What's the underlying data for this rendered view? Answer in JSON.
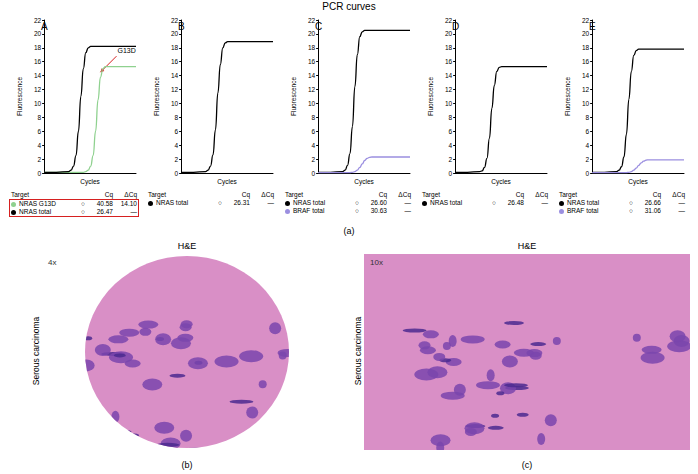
{
  "title": "PCR curves",
  "figure_label": "(a)",
  "table_header": [
    "Target",
    "Cq",
    "ΔCq"
  ],
  "chart_data": [
    {
      "type": "line",
      "panel": "A",
      "x_label": "Cycles",
      "y_label": "Fluorescence",
      "xlim": [
        0,
        75
      ],
      "ylim": [
        0,
        22
      ],
      "yticks": [
        0,
        2,
        4,
        6,
        8,
        10,
        12,
        14,
        16,
        18,
        20,
        22
      ],
      "grid": false,
      "tick_labels": "y",
      "x": [
        0,
        10,
        20,
        22,
        24,
        26,
        28,
        30,
        32,
        34,
        36,
        38,
        40,
        42,
        44,
        46,
        48,
        50,
        60,
        70,
        75
      ],
      "series": [
        {
          "name": "NRAS G13D",
          "color": "#8fd18f",
          "line_style": "solid",
          "symbol": "○",
          "cq": 40.58,
          "delta_cq": 14.1,
          "values": [
            0.1,
            0.1,
            0.1,
            0.1,
            0.1,
            0.1,
            0.1,
            0.1,
            0.1,
            0.2,
            0.4,
            1,
            2.5,
            6,
            10.5,
            13.8,
            15,
            15.3,
            15.3,
            15.3,
            15.3
          ]
        },
        {
          "name": "NRAS total",
          "color": "#000000",
          "line_style": "solid",
          "symbol": "○",
          "cq": 26.47,
          "delta_cq": "—",
          "values": [
            0.1,
            0.1,
            0.2,
            0.4,
            1,
            2.5,
            6,
            11,
            15,
            17.3,
            18,
            18.2,
            18.2,
            18.2,
            18.2,
            18.2,
            18.2,
            18.2,
            18.2,
            18.2,
            18.2
          ]
        }
      ],
      "annotations": [
        {
          "text": "G13D",
          "x": 46,
          "y": 14.5
        }
      ]
    },
    {
      "type": "line",
      "panel": "B",
      "x_label": "Cycles",
      "y_label": "Fluorescence",
      "xlim": [
        0,
        75
      ],
      "ylim": [
        0,
        22
      ],
      "yticks": [
        0,
        2,
        4,
        6,
        8,
        10,
        12,
        14,
        16,
        18,
        20,
        22
      ],
      "grid": false,
      "tick_labels": "y",
      "x": [
        0,
        10,
        20,
        22,
        24,
        26,
        28,
        30,
        32,
        34,
        36,
        38,
        40,
        42,
        44,
        46,
        48,
        50,
        60,
        70,
        75
      ],
      "series": [
        {
          "name": "NRAS total",
          "color": "#000000",
          "line_style": "solid",
          "symbol": "○",
          "cq": 26.31,
          "delta_cq": "—",
          "values": [
            0.1,
            0.1,
            0.2,
            0.4,
            1,
            2.6,
            6.2,
            11.5,
            15.6,
            18,
            18.7,
            18.9,
            18.9,
            18.9,
            18.9,
            18.9,
            18.9,
            18.9,
            18.9,
            18.9,
            18.9
          ]
        }
      ]
    },
    {
      "type": "line",
      "panel": "C",
      "x_label": "Cycles",
      "y_label": "Fluorescence",
      "xlim": [
        0,
        75
      ],
      "ylim": [
        0,
        22
      ],
      "yticks": [
        0,
        2,
        4,
        6,
        8,
        10,
        12,
        14,
        16,
        18,
        20,
        22
      ],
      "grid": false,
      "tick_labels": "y",
      "x": [
        0,
        10,
        20,
        22,
        24,
        26,
        28,
        30,
        32,
        34,
        36,
        38,
        40,
        42,
        44,
        46,
        48,
        50,
        60,
        70,
        75
      ],
      "series": [
        {
          "name": "NRAS total",
          "color": "#000000",
          "line_style": "solid",
          "symbol": "○",
          "cq": 26.6,
          "delta_cq": "—",
          "values": [
            0.1,
            0.1,
            0.2,
            0.4,
            1.1,
            2.8,
            6.7,
            12.4,
            17,
            19.6,
            20.3,
            20.5,
            20.5,
            20.5,
            20.5,
            20.5,
            20.5,
            20.5,
            20.5,
            20.5,
            20.5
          ]
        },
        {
          "name": "BRAF total",
          "color": "#9b8fe0",
          "line_style": "solid",
          "symbol": "○",
          "cq": 30.63,
          "delta_cq": "—",
          "values": [
            0.05,
            0.05,
            0.05,
            0.05,
            0.05,
            0.05,
            0.1,
            0.2,
            0.4,
            0.8,
            1.3,
            1.8,
            2.1,
            2.25,
            2.3,
            2.3,
            2.3,
            2.3,
            2.3,
            2.3,
            2.3
          ]
        }
      ]
    },
    {
      "type": "line",
      "panel": "D",
      "x_label": "Cycles",
      "y_label": "Fluorescence",
      "xlim": [
        0,
        75
      ],
      "ylim": [
        0,
        22
      ],
      "yticks": [
        0,
        2,
        4,
        6,
        8,
        10,
        12,
        14,
        16,
        18,
        20,
        22
      ],
      "grid": false,
      "tick_labels": "y",
      "x": [
        0,
        10,
        20,
        22,
        24,
        26,
        28,
        30,
        32,
        34,
        36,
        38,
        40,
        42,
        44,
        46,
        48,
        50,
        60,
        70,
        75
      ],
      "series": [
        {
          "name": "NRAS total",
          "color": "#000000",
          "line_style": "solid",
          "symbol": "○",
          "cq": 26.48,
          "delta_cq": "—",
          "values": [
            0.1,
            0.1,
            0.2,
            0.3,
            0.8,
            2.1,
            5,
            9.3,
            12.6,
            14.6,
            15.2,
            15.3,
            15.3,
            15.3,
            15.3,
            15.3,
            15.3,
            15.3,
            15.3,
            15.3,
            15.3
          ]
        }
      ]
    },
    {
      "type": "line",
      "panel": "E",
      "x_label": "Cycles",
      "y_label": "Fluorescence",
      "xlim": [
        0,
        75
      ],
      "ylim": [
        0,
        22
      ],
      "yticks": [
        0,
        2,
        4,
        6,
        8,
        10,
        12,
        14,
        16,
        18,
        20,
        22
      ],
      "grid": false,
      "tick_labels": "y",
      "x": [
        0,
        10,
        20,
        22,
        24,
        26,
        28,
        30,
        32,
        34,
        36,
        38,
        40,
        42,
        44,
        46,
        48,
        50,
        60,
        70,
        75
      ],
      "series": [
        {
          "name": "NRAS total",
          "color": "#000000",
          "line_style": "solid",
          "symbol": "○",
          "cq": 26.66,
          "delta_cq": "—",
          "values": [
            0.1,
            0.1,
            0.2,
            0.4,
            0.9,
            2.3,
            5.6,
            10.6,
            14.6,
            16.9,
            17.6,
            17.8,
            17.8,
            17.8,
            17.8,
            17.8,
            17.8,
            17.8,
            17.8,
            17.8,
            17.8
          ]
        },
        {
          "name": "BRAF total",
          "color": "#9b8fe0",
          "line_style": "solid",
          "symbol": "○",
          "cq": 31.06,
          "delta_cq": "—",
          "values": [
            0.05,
            0.05,
            0.05,
            0.05,
            0.05,
            0.05,
            0.05,
            0.1,
            0.2,
            0.4,
            0.7,
            1.1,
            1.45,
            1.7,
            1.85,
            1.9,
            1.9,
            1.9,
            1.9,
            1.9,
            1.9
          ]
        }
      ]
    }
  ],
  "images": [
    {
      "title": "H&E",
      "magnification": "4x",
      "side_label": "Serous carcinoma",
      "label": "(b)"
    },
    {
      "title": "H&E",
      "magnification": "10x",
      "side_label": "Serous carcinoma",
      "label": "(c)"
    }
  ]
}
